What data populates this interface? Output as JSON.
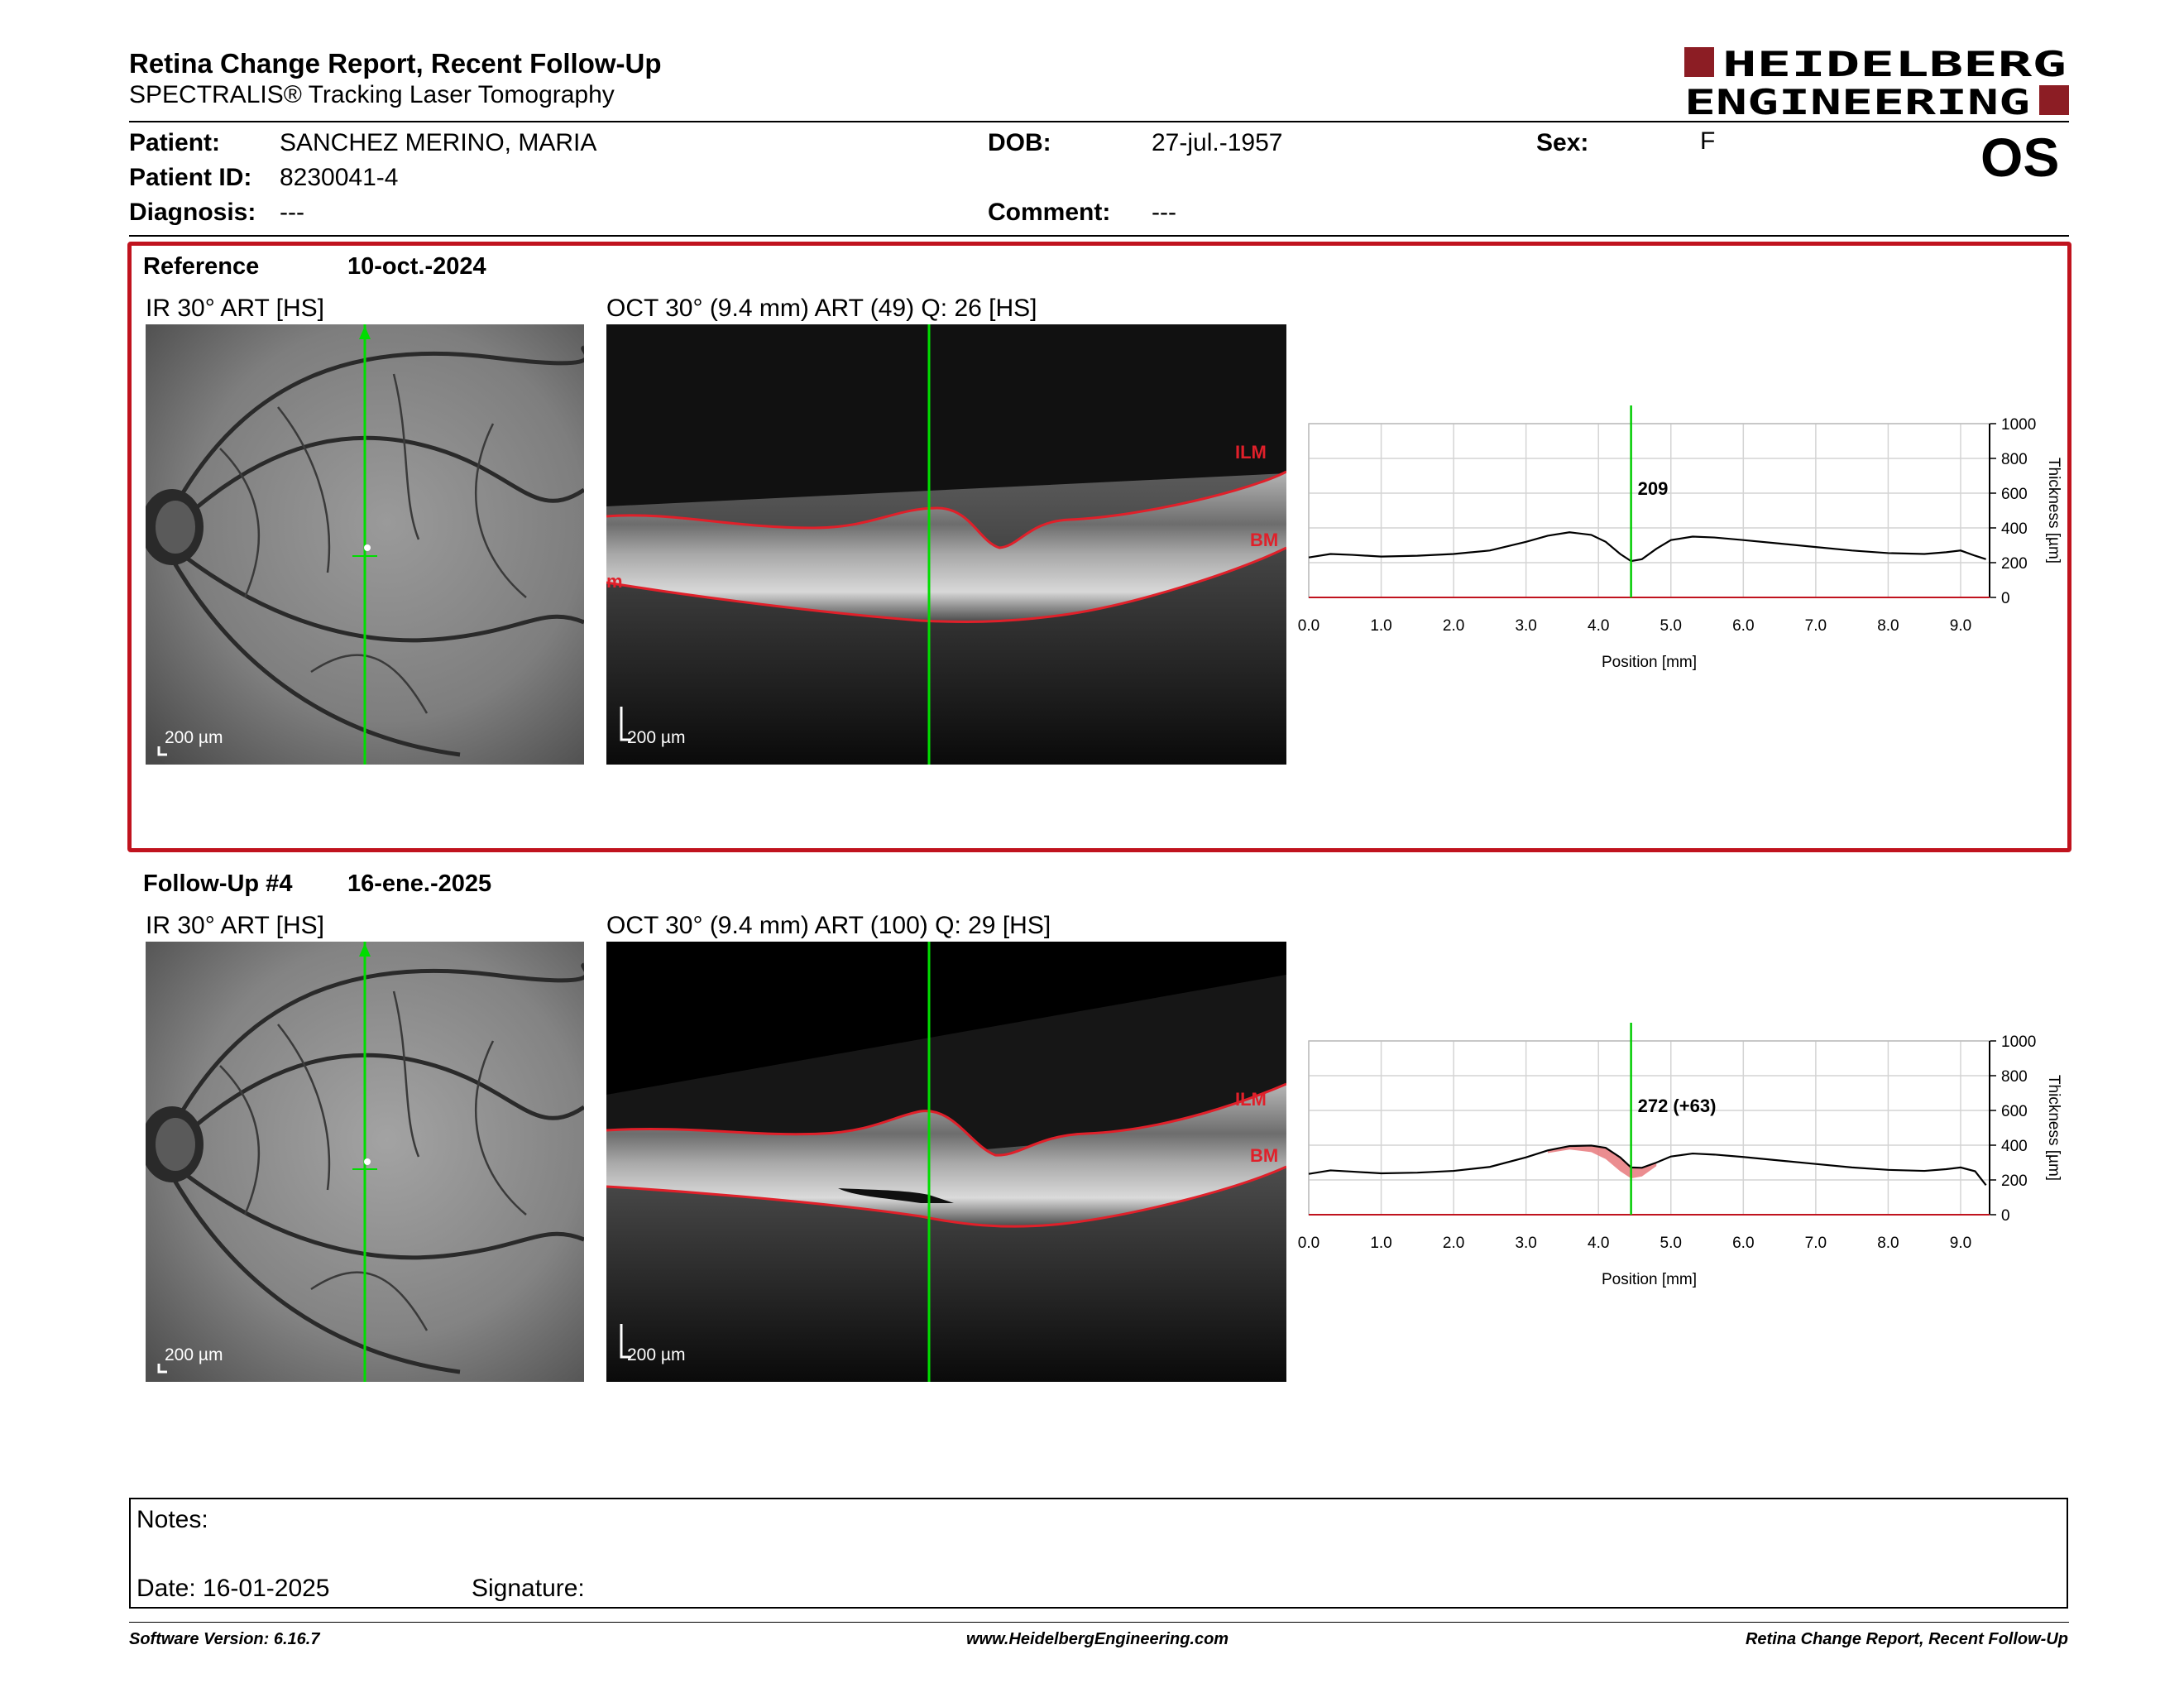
{
  "header": {
    "title": "Retina Change Report, Recent Follow-Up",
    "subtitle": "SPECTRALIS® Tracking Laser Tomography",
    "brand_line1": "HEIDELBERG",
    "brand_line2": "ENGINEERING",
    "eye": "OS"
  },
  "patient": {
    "name_label": "Patient:",
    "name": "SANCHEZ MERINO, MARIA",
    "id_label": "Patient ID:",
    "id": "8230041-4",
    "diagnosis_label": "Diagnosis:",
    "diagnosis": "---",
    "dob_label": "DOB:",
    "dob": "27-jul.-1957",
    "comment_label": "Comment:",
    "comment": "---",
    "sex_label": "Sex:",
    "sex": "F"
  },
  "reference": {
    "label": "Reference",
    "date": "10-oct.-2024",
    "ir_title": "IR 30° ART [HS]",
    "oct_title": "OCT 30° (9.4 mm) ART (49) Q: 26 [HS]",
    "scale": "200 µm",
    "layer_ilm": "ILM",
    "layer_bm": "BM",
    "layer_partial": "m"
  },
  "followup": {
    "label": "Follow-Up #4",
    "date": "16-ene.-2025",
    "ir_title": "IR 30° ART [HS]",
    "oct_title": "OCT 30° (9.4 mm) ART (100) Q: 29 [HS]",
    "scale": "200 µm",
    "layer_ilm": "ILM",
    "layer_bm": "BM"
  },
  "chart_data": [
    {
      "type": "line",
      "xlabel": "Position [mm]",
      "ylabel": "Thickness [µm]",
      "xlim": [
        0,
        9.4
      ],
      "ylim": [
        0,
        1000
      ],
      "x_ticks": [
        "0.0",
        "1.0",
        "2.0",
        "3.0",
        "4.0",
        "5.0",
        "6.0",
        "7.0",
        "8.0",
        "9.0"
      ],
      "y_ticks": [
        "0",
        "200",
        "400",
        "600",
        "800",
        "1000"
      ],
      "grid": true,
      "marker_position": 4.45,
      "marker_label": "209",
      "x": [
        0,
        0.3,
        0.6,
        1.0,
        1.5,
        2.0,
        2.5,
        3.0,
        3.3,
        3.6,
        3.9,
        4.1,
        4.3,
        4.45,
        4.6,
        4.8,
        5.0,
        5.3,
        5.6,
        6.0,
        6.5,
        7.0,
        7.5,
        8.0,
        8.5,
        8.8,
        9.0,
        9.2,
        9.35
      ],
      "series": [
        {
          "values": [
            230,
            250,
            245,
            235,
            240,
            250,
            270,
            320,
            355,
            375,
            360,
            320,
            250,
            209,
            220,
            280,
            330,
            350,
            345,
            330,
            310,
            290,
            270,
            255,
            250,
            260,
            270,
            240,
            220
          ]
        }
      ]
    },
    {
      "type": "line",
      "xlabel": "Position [mm]",
      "ylabel": "Thickness [µm]",
      "xlim": [
        0,
        9.4
      ],
      "ylim": [
        0,
        1000
      ],
      "x_ticks": [
        "0.0",
        "1.0",
        "2.0",
        "3.0",
        "4.0",
        "5.0",
        "6.0",
        "7.0",
        "8.0",
        "9.0"
      ],
      "y_ticks": [
        "0",
        "200",
        "400",
        "600",
        "800",
        "1000"
      ],
      "grid": true,
      "marker_position": 4.45,
      "marker_label": "272 (+63)",
      "x": [
        0,
        0.3,
        0.6,
        1.0,
        1.5,
        2.0,
        2.5,
        3.0,
        3.3,
        3.6,
        3.9,
        4.1,
        4.3,
        4.45,
        4.6,
        4.8,
        5.0,
        5.3,
        5.6,
        6.0,
        6.5,
        7.0,
        7.5,
        8.0,
        8.5,
        8.8,
        9.0,
        9.2,
        9.35
      ],
      "series": [
        {
          "values": [
            230,
            250,
            245,
            235,
            240,
            250,
            270,
            320,
            355,
            375,
            360,
            320,
            250,
            209,
            220,
            280,
            330,
            350,
            345,
            330,
            310,
            290,
            270,
            255,
            250,
            260,
            270,
            240,
            220
          ]
        },
        {
          "values": [
            235,
            255,
            248,
            238,
            242,
            252,
            275,
            330,
            370,
            395,
            398,
            385,
            330,
            272,
            270,
            300,
            335,
            352,
            346,
            332,
            312,
            292,
            272,
            258,
            252,
            262,
            272,
            250,
            170
          ]
        }
      ]
    }
  ],
  "notes": {
    "notes_label": "Notes:",
    "date_label": "Date: 16-01-2025",
    "signature_label": "Signature:"
  },
  "footer": {
    "software": "Software Version: 6.16.7",
    "website": "www.HeidelbergEngineering.com",
    "report": "Retina Change Report, Recent Follow-Up"
  },
  "colors": {
    "accent": "#c0131e",
    "brand": "#8c1d24",
    "marker": "#00cc00",
    "layer": "#e0202a"
  }
}
